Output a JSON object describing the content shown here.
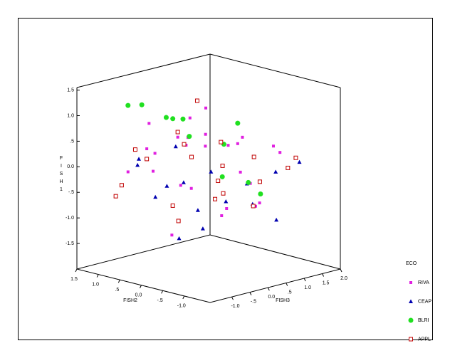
{
  "chart_data": {
    "type": "scatter3d",
    "x_label": "FISH2",
    "y_label": "FISH1",
    "z_label": "FISH3",
    "legend_title": "ECO",
    "legend_position": "right",
    "xlim": [
      1.5,
      -1.6
    ],
    "ylim": [
      -2.0,
      1.55
    ],
    "zlim": [
      -1.6,
      2.0
    ],
    "xticks": [
      1.5,
      {
        "value": 1.0,
        "label": "1.0"
      },
      {
        "value": 0.5,
        "label": ".5"
      },
      {
        "value": 0.0,
        "label": "0.0"
      },
      {
        "value": -0.5,
        "label": "-.5"
      },
      {
        "value": -1.0,
        "label": "-1.0"
      }
    ],
    "yticks": [
      1.5,
      {
        "value": 1.0,
        "label": "1.0"
      },
      {
        "value": 0.5,
        "label": ".5"
      },
      {
        "value": 0.0,
        "label": "0.0"
      },
      {
        "value": -0.5,
        "label": "-.5"
      },
      {
        "value": -1.0,
        "label": "-1.0"
      },
      -1.5
    ],
    "zticks": [
      {
        "value": -1.0,
        "label": "-1.0"
      },
      {
        "value": -0.5,
        "label": "-.5"
      },
      {
        "value": 0.0,
        "label": "0.0"
      },
      {
        "value": 0.5,
        "label": ".5"
      },
      {
        "value": 1.0,
        "label": "1.0"
      },
      1.5,
      {
        "value": 2.0,
        "label": "2.0"
      }
    ],
    "series": [
      {
        "name": "RIVA",
        "color": "#e020e0",
        "marker": "square",
        "x": [
          0.3,
          -0.5,
          0.8,
          -0.2,
          0.1,
          0.6,
          -0.8,
          0.4,
          -0.3,
          1.0,
          0.2,
          -0.6,
          0.5,
          -0.1,
          0.9,
          -0.4,
          0.0,
          0.7,
          -0.9,
          0.3,
          -0.2,
          0.6,
          0.1,
          -0.7,
          1.2,
          -0.3
        ],
        "y": [
          0.9,
          0.6,
          0.3,
          -0.2,
          1.1,
          -0.5,
          0.4,
          0.0,
          -0.8,
          0.7,
          0.2,
          -0.3,
          0.5,
          -1.0,
          -0.1,
          0.8,
          0.3,
          0.1,
          -0.6,
          -1.3,
          0.6,
          0.4,
          -0.4,
          0.2,
          0.0,
          -0.9
        ],
        "z": [
          0.1,
          0.6,
          -0.5,
          0.9,
          0.3,
          0.2,
          1.1,
          -0.8,
          0.4,
          -0.2,
          1.3,
          0.7,
          0.0,
          0.5,
          -0.9,
          -0.3,
          0.8,
          1.0,
          0.6,
          -0.4,
          -0.6,
          0.4,
          -0.1,
          1.4,
          0.2,
          1.2
        ]
      },
      {
        "name": "CEAP",
        "color": "#0000b0",
        "marker": "triangle",
        "x": [
          0.5,
          -0.2,
          0.9,
          0.2,
          -0.6,
          0.7,
          0.0,
          -0.9,
          0.4,
          1.1,
          -0.4,
          0.3,
          0.8,
          -0.1,
          0.6,
          -0.7
        ],
        "y": [
          -0.4,
          -0.7,
          0.1,
          -0.9,
          -0.2,
          -0.5,
          -1.2,
          0.0,
          -0.3,
          -0.1,
          -0.8,
          -1.4,
          0.2,
          -0.5,
          -0.6,
          -1.1
        ],
        "z": [
          -0.3,
          0.5,
          -0.6,
          0.2,
          1.4,
          0.4,
          0.1,
          1.7,
          0.8,
          -0.4,
          1.0,
          -0.2,
          0.3,
          1.2,
          -0.5,
          1.3
        ]
      },
      {
        "name": "BLRI",
        "color": "#20e020",
        "marker": "circle",
        "x": [
          1.0,
          0.7,
          0.4,
          0.9,
          -0.3,
          0.2,
          -0.5,
          0.6,
          0.1,
          -0.2,
          0.8
        ],
        "y": [
          1.1,
          0.8,
          0.5,
          1.2,
          -0.4,
          0.6,
          -0.6,
          0.9,
          0.3,
          -0.2,
          0.7
        ],
        "z": [
          -0.4,
          0.1,
          0.2,
          -0.9,
          1.0,
          1.3,
          1.1,
          -0.2,
          0.8,
          0.4,
          0.5
        ]
      },
      {
        "name": "APPL",
        "color": "#c00000",
        "marker": "open-square",
        "x": [
          0.8,
          -0.1,
          0.5,
          0.2,
          -0.6,
          1.1,
          0.3,
          -0.4,
          0.7,
          0.0,
          -0.8,
          0.4,
          0.9,
          -0.2,
          0.6,
          0.1,
          -0.5,
          1.3,
          -0.9,
          0.3
        ],
        "y": [
          0.1,
          -0.3,
          0.6,
          -0.7,
          0.2,
          -0.6,
          1.2,
          -0.4,
          -0.9,
          0.4,
          -0.1,
          -1.1,
          0.3,
          -0.6,
          0.0,
          0.5,
          -0.8,
          -0.5,
          0.1,
          -0.2
        ],
        "z": [
          -0.5,
          0.4,
          0.0,
          0.9,
          0.8,
          -1.0,
          0.3,
          1.2,
          0.1,
          0.6,
          1.5,
          -0.1,
          -0.7,
          0.2,
          0.5,
          -0.3,
          0.9,
          -0.6,
          1.6,
          1.0
        ]
      }
    ]
  }
}
